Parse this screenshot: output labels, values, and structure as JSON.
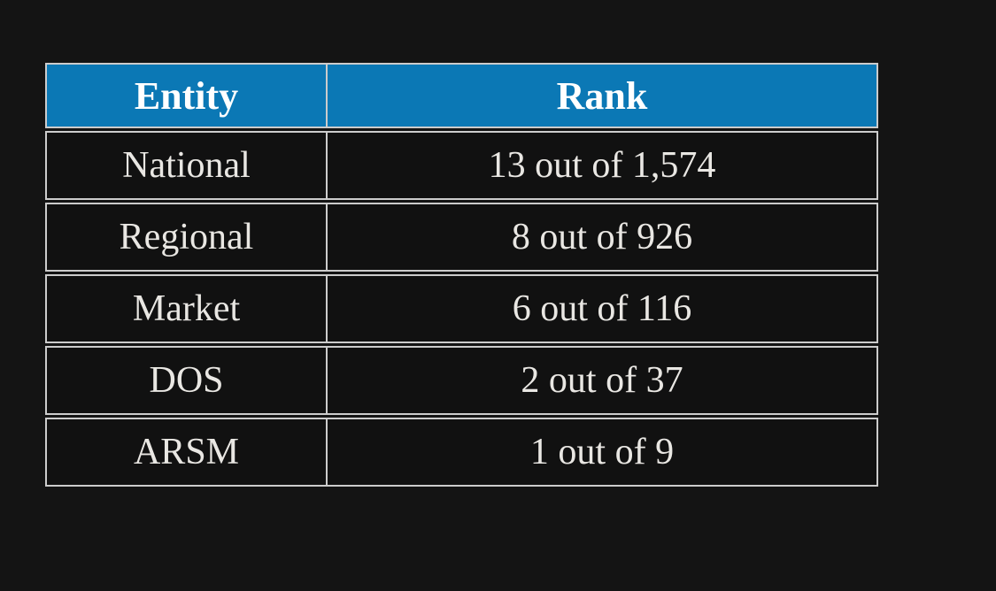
{
  "theme": {
    "page-bg": "#141414",
    "cell-bg": "#111111",
    "header-bg": "#0b78b5",
    "header-text": "#ffffff",
    "cell-text": "#e9e7e3",
    "border-color": "#cccccc"
  },
  "chart_data": {
    "type": "table",
    "title": "",
    "columns": [
      "Entity",
      "Rank"
    ],
    "rows": [
      [
        "National",
        "13 out of 1,574"
      ],
      [
        "Regional",
        "8 out of 926"
      ],
      [
        "Market",
        "6 out of 116"
      ],
      [
        "DOS",
        "2 out of 37"
      ],
      [
        "ARSM",
        "1 out of 9"
      ]
    ],
    "layout_hints": {
      "header_background": "#0b78b5",
      "page_background": "#141414",
      "grid": "on",
      "text_alignment": "center"
    }
  }
}
